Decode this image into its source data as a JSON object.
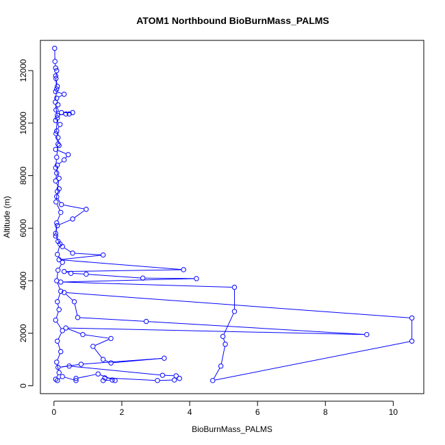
{
  "chart_data": {
    "type": "line",
    "title": "ATOM1 Northbound BioBurnMass_PALMS",
    "xlabel": "BioBurnMass_PALMS",
    "ylabel": "Altitude (m)",
    "xlim": [
      -0.4,
      10.9
    ],
    "ylim": [
      -300,
      13150
    ],
    "x_ticks": [
      0,
      2,
      4,
      6,
      8,
      10
    ],
    "y_ticks": [
      0,
      2000,
      4000,
      6000,
      8000,
      10000,
      12000
    ],
    "grid": false,
    "legend": "none",
    "series_color": "#0000ff",
    "marker": "open-circle",
    "series": [
      {
        "values": [
          {
            "x": 0.02,
            "y": 12850
          },
          {
            "x": 0.03,
            "y": 12350
          },
          {
            "x": 0.05,
            "y": 12100
          },
          {
            "x": 0.08,
            "y": 12000
          },
          {
            "x": 0.06,
            "y": 11700
          },
          {
            "x": 0.1,
            "y": 11400
          },
          {
            "x": 0.05,
            "y": 11200
          },
          {
            "x": 0.3,
            "y": 11100
          },
          {
            "x": 0.08,
            "y": 10950
          },
          {
            "x": 0.12,
            "y": 10700
          },
          {
            "x": 0.06,
            "y": 10500
          },
          {
            "x": 0.22,
            "y": 10400
          },
          {
            "x": 0.55,
            "y": 10400
          },
          {
            "x": 0.45,
            "y": 10350
          },
          {
            "x": 0.35,
            "y": 10350
          },
          {
            "x": 0.1,
            "y": 10300
          },
          {
            "x": 0.05,
            "y": 10100
          },
          {
            "x": 0.18,
            "y": 9950
          },
          {
            "x": 0.08,
            "y": 9700
          },
          {
            "x": 0.12,
            "y": 9450
          },
          {
            "x": 0.15,
            "y": 9150
          },
          {
            "x": 0.05,
            "y": 9000
          },
          {
            "x": 0.42,
            "y": 8800
          },
          {
            "x": 0.3,
            "y": 8600
          },
          {
            "x": 0.1,
            "y": 8400
          },
          {
            "x": 0.08,
            "y": 8100
          },
          {
            "x": 0.05,
            "y": 7800
          },
          {
            "x": 0.15,
            "y": 7500
          },
          {
            "x": 0.08,
            "y": 7200
          },
          {
            "x": 0.22,
            "y": 6900
          },
          {
            "x": 0.95,
            "y": 6720
          },
          {
            "x": 0.55,
            "y": 6350
          },
          {
            "x": 0.1,
            "y": 6100
          },
          {
            "x": 0.05,
            "y": 5800
          },
          {
            "x": 0.12,
            "y": 5500
          },
          {
            "x": 0.25,
            "y": 5300
          },
          {
            "x": 0.55,
            "y": 5050
          },
          {
            "x": 1.45,
            "y": 4980
          },
          {
            "x": 0.15,
            "y": 4800
          },
          {
            "x": 3.82,
            "y": 4420
          },
          {
            "x": 0.3,
            "y": 4350
          },
          {
            "x": 0.5,
            "y": 4280
          },
          {
            "x": 0.95,
            "y": 4250
          },
          {
            "x": 2.62,
            "y": 4100
          },
          {
            "x": 4.2,
            "y": 4080
          },
          {
            "x": 0.2,
            "y": 3950
          },
          {
            "x": 5.32,
            "y": 3750
          },
          {
            "x": 5.32,
            "y": 2830
          },
          {
            "x": 4.98,
            "y": 1880
          },
          {
            "x": 5.05,
            "y": 1580
          },
          {
            "x": 4.92,
            "y": 750
          },
          {
            "x": 4.68,
            "y": 200
          },
          {
            "x": 10.55,
            "y": 1700
          },
          {
            "x": 10.55,
            "y": 2580
          },
          {
            "x": 0.3,
            "y": 3550
          },
          {
            "x": 0.6,
            "y": 3200
          },
          {
            "x": 0.7,
            "y": 2600
          },
          {
            "x": 2.72,
            "y": 2450
          },
          {
            "x": 9.22,
            "y": 1950
          },
          {
            "x": 0.35,
            "y": 2200
          },
          {
            "x": 0.85,
            "y": 1950
          },
          {
            "x": 1.68,
            "y": 1800
          },
          {
            "x": 1.15,
            "y": 1500
          },
          {
            "x": 1.45,
            "y": 1000
          },
          {
            "x": 1.68,
            "y": 870
          },
          {
            "x": 3.25,
            "y": 1050
          },
          {
            "x": 0.8,
            "y": 820
          },
          {
            "x": 0.12,
            "y": 700
          },
          {
            "x": 0.45,
            "y": 750
          },
          {
            "x": 3.2,
            "y": 400
          },
          {
            "x": 3.6,
            "y": 380
          },
          {
            "x": 3.7,
            "y": 280
          },
          {
            "x": 3.55,
            "y": 220
          },
          {
            "x": 3.05,
            "y": 200
          },
          {
            "x": 1.5,
            "y": 300
          },
          {
            "x": 1.45,
            "y": 200
          },
          {
            "x": 1.72,
            "y": 220
          },
          {
            "x": 1.8,
            "y": 200
          },
          {
            "x": 1.3,
            "y": 450
          },
          {
            "x": 0.65,
            "y": 280
          },
          {
            "x": 0.65,
            "y": 200
          },
          {
            "x": 0.25,
            "y": 350
          },
          {
            "x": 0.1,
            "y": 200
          }
        ]
      },
      {
        "values": [
          {
            "x": 0.05,
            "y": 11800
          },
          {
            "x": 0.08,
            "y": 11300
          },
          {
            "x": 0.04,
            "y": 10800
          },
          {
            "x": 0.1,
            "y": 10200
          },
          {
            "x": 0.06,
            "y": 9600
          },
          {
            "x": 0.12,
            "y": 9200
          },
          {
            "x": 0.08,
            "y": 8700
          },
          {
            "x": 0.05,
            "y": 8300
          },
          {
            "x": 0.15,
            "y": 7900
          },
          {
            "x": 0.1,
            "y": 7400
          },
          {
            "x": 0.06,
            "y": 7000
          },
          {
            "x": 0.2,
            "y": 6600
          },
          {
            "x": 0.08,
            "y": 6200
          },
          {
            "x": 0.05,
            "y": 5700
          },
          {
            "x": 0.18,
            "y": 5400
          },
          {
            "x": 0.1,
            "y": 5000
          },
          {
            "x": 0.25,
            "y": 4700
          },
          {
            "x": 0.12,
            "y": 4400
          },
          {
            "x": 0.08,
            "y": 4000
          },
          {
            "x": 0.2,
            "y": 3600
          },
          {
            "x": 0.1,
            "y": 3200
          },
          {
            "x": 0.15,
            "y": 2900
          },
          {
            "x": 0.05,
            "y": 2500
          },
          {
            "x": 0.25,
            "y": 2100
          },
          {
            "x": 0.1,
            "y": 1700
          },
          {
            "x": 0.2,
            "y": 1300
          },
          {
            "x": 0.08,
            "y": 900
          },
          {
            "x": 0.15,
            "y": 500
          },
          {
            "x": 0.05,
            "y": 250
          }
        ]
      }
    ]
  }
}
